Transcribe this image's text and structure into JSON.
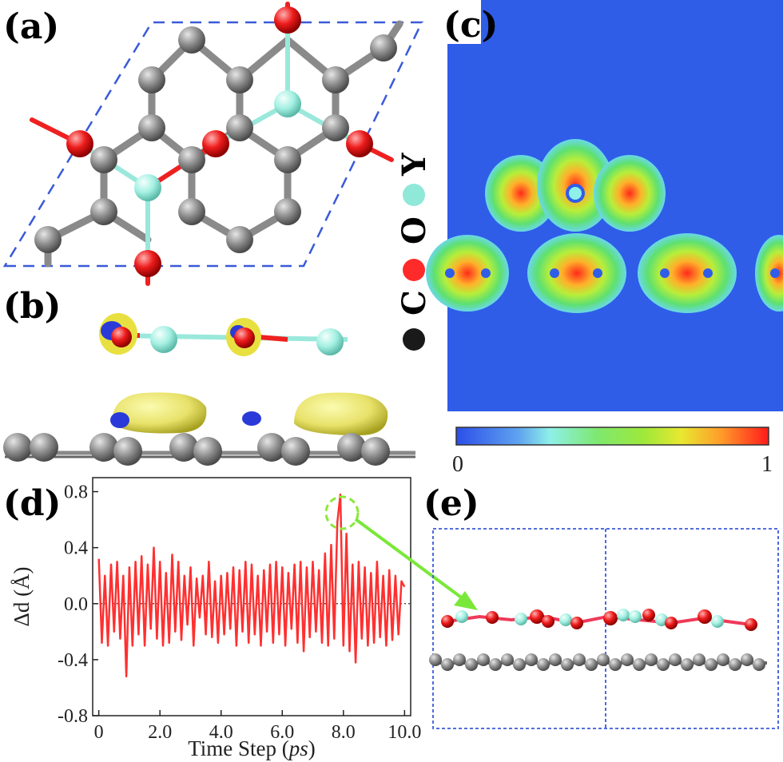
{
  "panels": {
    "a": "(a)",
    "b": "(b)",
    "c": "(c)",
    "d": "(d)",
    "e": "(e)"
  },
  "legend": [
    {
      "symbol": "C",
      "color": "#1a1a1a"
    },
    {
      "symbol": "O",
      "color": "#ff2a2a"
    },
    {
      "symbol": "Y",
      "color": "#8fe8d8"
    }
  ],
  "colorbar": {
    "min_label": "0",
    "max_label": "1"
  },
  "chart_data": {
    "type": "line",
    "xlabel_prefix": "Time Step (",
    "xlabel_unit": "ps",
    "xlabel_suffix": ")",
    "ylabel": "Δd (Å)",
    "xlim": [
      -0.2,
      10.2
    ],
    "ylim": [
      -0.8,
      0.9
    ],
    "xticks": [
      "0",
      "2.0",
      "4.0",
      "6.0",
      "8.0",
      "10.0"
    ],
    "xtick_values": [
      0,
      2,
      4,
      6,
      8,
      10
    ],
    "yticks": [
      "-0.8",
      "-0.4",
      "0.0",
      "0.4",
      "0.8"
    ],
    "ytick_values": [
      -0.8,
      -0.4,
      0.0,
      0.4,
      0.8
    ],
    "series_color": "#ff3030",
    "series": [
      {
        "x": [
          0.0,
          0.1,
          0.2,
          0.3,
          0.4,
          0.5,
          0.6,
          0.7,
          0.8,
          0.9,
          1.0,
          1.1,
          1.2,
          1.3,
          1.4,
          1.5,
          1.6,
          1.7,
          1.8,
          1.9,
          2.0,
          2.1,
          2.2,
          2.3,
          2.4,
          2.5,
          2.6,
          2.7,
          2.8,
          2.9,
          3.0,
          3.1,
          3.2,
          3.3,
          3.4,
          3.5,
          3.6,
          3.7,
          3.8,
          3.9,
          4.0,
          4.1,
          4.2,
          4.3,
          4.4,
          4.5,
          4.6,
          4.7,
          4.8,
          4.9,
          5.0,
          5.1,
          5.2,
          5.3,
          5.4,
          5.5,
          5.6,
          5.7,
          5.8,
          5.9,
          6.0,
          6.1,
          6.2,
          6.3,
          6.4,
          6.5,
          6.6,
          6.7,
          6.8,
          6.9,
          7.0,
          7.1,
          7.2,
          7.3,
          7.4,
          7.5,
          7.6,
          7.7,
          7.8,
          7.9,
          8.0,
          8.1,
          8.2,
          8.3,
          8.4,
          8.5,
          8.6,
          8.7,
          8.8,
          8.9,
          9.0,
          9.1,
          9.2,
          9.3,
          9.4,
          9.5,
          9.6,
          9.7,
          9.8,
          9.9,
          10.0
        ],
        "y": [
          0.32,
          -0.28,
          0.2,
          -0.3,
          0.28,
          -0.2,
          0.3,
          -0.25,
          0.2,
          -0.52,
          0.26,
          -0.3,
          0.3,
          -0.22,
          0.34,
          -0.3,
          0.28,
          -0.18,
          0.4,
          -0.25,
          0.3,
          -0.3,
          0.22,
          -0.28,
          0.35,
          -0.2,
          0.3,
          -0.26,
          0.2,
          -0.15,
          0.26,
          -0.3,
          0.18,
          -0.1,
          0.2,
          -0.22,
          0.3,
          -0.24,
          0.16,
          -0.28,
          0.2,
          -0.22,
          0.22,
          -0.18,
          0.26,
          -0.3,
          0.24,
          -0.2,
          0.3,
          -0.28,
          0.28,
          -0.22,
          0.2,
          -0.3,
          0.24,
          -0.2,
          0.28,
          -0.28,
          0.3,
          -0.22,
          0.26,
          -0.3,
          0.22,
          -0.18,
          0.28,
          -0.28,
          0.3,
          -0.34,
          0.26,
          -0.24,
          0.3,
          -0.2,
          0.24,
          -0.28,
          0.36,
          -0.3,
          0.42,
          -0.25,
          0.58,
          0.78,
          -0.3,
          0.5,
          -0.34,
          0.28,
          -0.42,
          0.3,
          -0.25,
          0.26,
          -0.3,
          0.22,
          -0.28,
          0.3,
          -0.24,
          0.2,
          -0.3,
          0.24,
          -0.26,
          0.2,
          -0.22,
          0.16,
          0.12
        ]
      }
    ]
  }
}
